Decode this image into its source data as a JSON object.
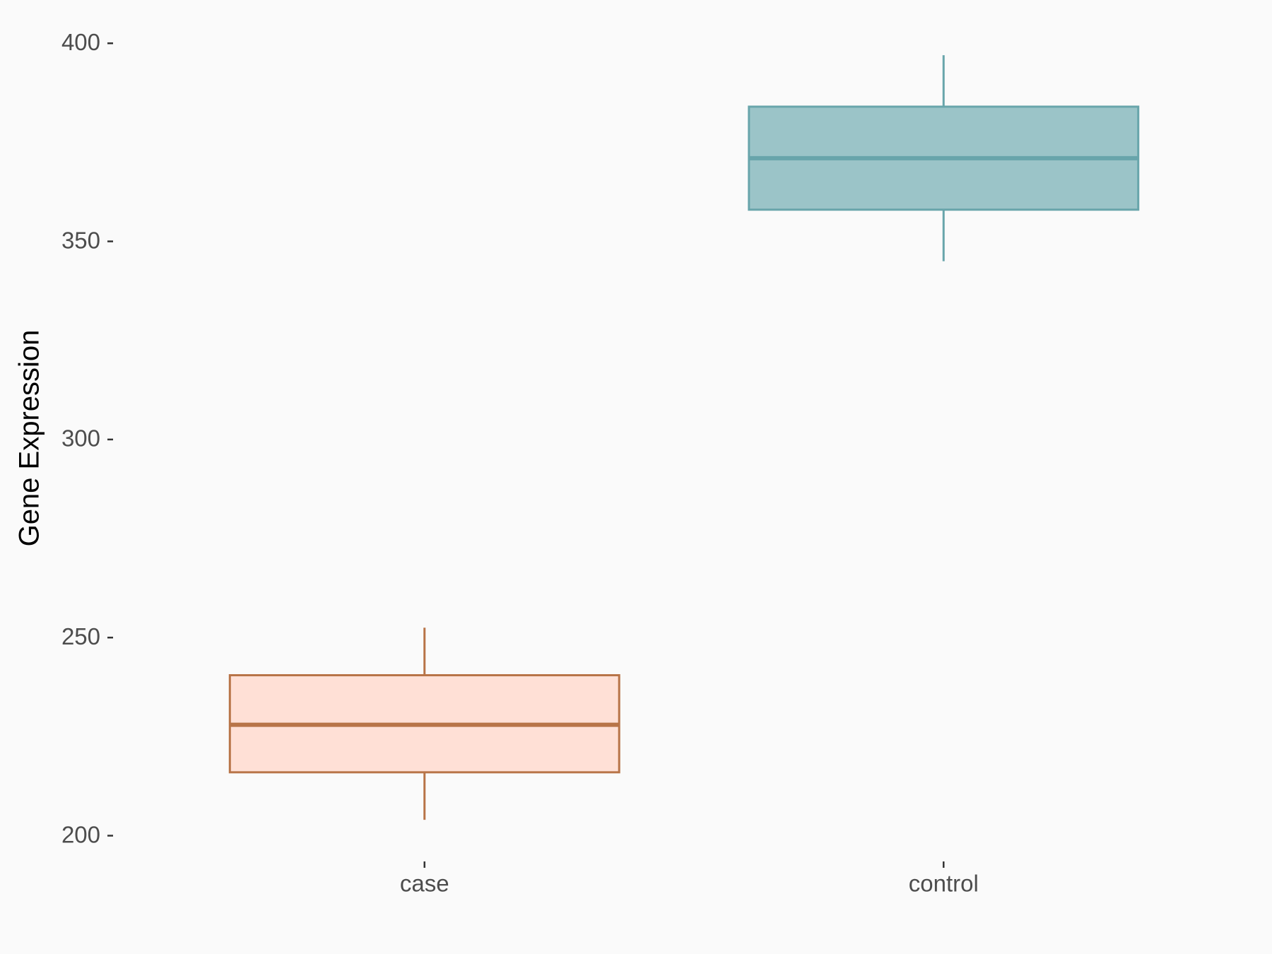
{
  "chart_data": {
    "type": "box",
    "y_label": "Gene Expression",
    "categories": [
      "case",
      "control"
    ],
    "boxes": [
      {
        "min": 204,
        "q1": 216,
        "median": 228,
        "q3": 240.5,
        "max": 252.5,
        "fill": "#ffe0d6",
        "stroke": "#b87448"
      },
      {
        "min": 345,
        "q1": 358,
        "median": 371,
        "q3": 384,
        "max": 397,
        "fill": "#9bc4c8",
        "stroke": "#68a5ab"
      }
    ],
    "ylim": [
      193.5,
      407
    ],
    "yticks": [
      200,
      250,
      300,
      350,
      400
    ],
    "grid": false
  }
}
